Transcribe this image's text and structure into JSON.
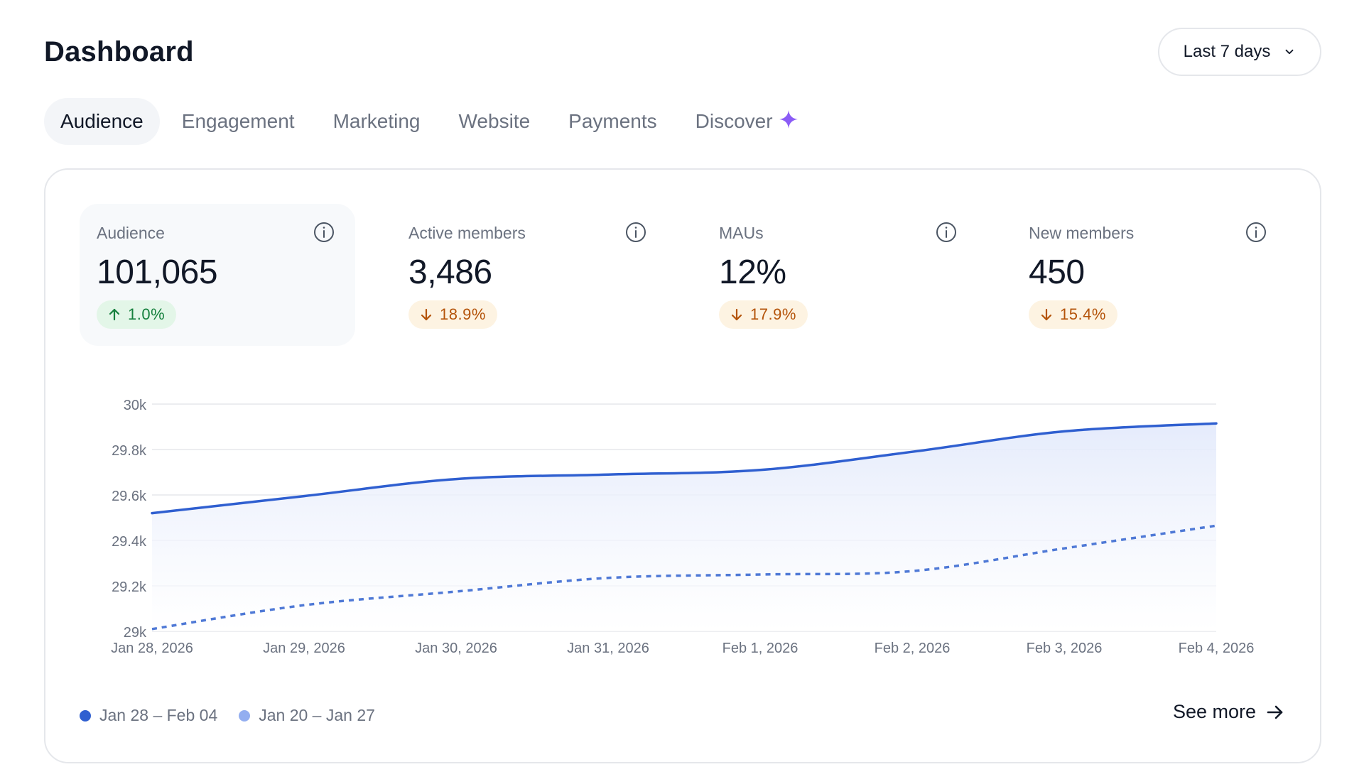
{
  "header": {
    "title": "Dashboard",
    "range": {
      "label": "Last 7 days",
      "icon": "chevron-down-icon"
    }
  },
  "tabs": [
    {
      "label": "Audience",
      "active": true
    },
    {
      "label": "Engagement"
    },
    {
      "label": "Marketing"
    },
    {
      "label": "Website"
    },
    {
      "label": "Payments"
    },
    {
      "label": "Discover",
      "icon": "sparkle-icon",
      "icon_color": "#8b5cf6"
    }
  ],
  "metrics": [
    {
      "label": "Audience",
      "value": "101,065",
      "change": "1.0%",
      "direction": "up",
      "active": true
    },
    {
      "label": "Active members",
      "value": "3,486",
      "change": "18.9%",
      "direction": "down"
    },
    {
      "label": "MAUs",
      "value": "12%",
      "change": "17.9%",
      "direction": "down"
    },
    {
      "label": "New members",
      "value": "450",
      "change": "15.4%",
      "direction": "down"
    }
  ],
  "colors": {
    "current": "#2f5fd0",
    "previous": "#93aef0",
    "up": "#15803d",
    "down": "#b45309"
  },
  "chart_data": {
    "type": "line",
    "x": [
      "Jan 28, 2026",
      "Jan 29, 2026",
      "Jan 30, 2026",
      "Jan 31, 2026",
      "Feb 1, 2026",
      "Feb 2, 2026",
      "Feb 3, 2026",
      "Feb 4, 2026"
    ],
    "y_ticks": [
      "30k",
      "29.8k",
      "29.6k",
      "29.4k",
      "29.2k",
      "29k"
    ],
    "ylim": [
      29000,
      30000
    ],
    "grid": true,
    "legend_position": "bottom-left",
    "series": [
      {
        "name": "Jan 28 – Feb 04",
        "style": "solid",
        "area": true,
        "values": [
          29520,
          29595,
          29670,
          29690,
          29710,
          29790,
          29880,
          29915
        ]
      },
      {
        "name": "Jan 20 – Jan 27",
        "style": "dashed",
        "values": [
          29010,
          29115,
          29175,
          29235,
          29250,
          29265,
          29365,
          29465
        ]
      }
    ]
  },
  "footer": {
    "see_more": "See more"
  }
}
